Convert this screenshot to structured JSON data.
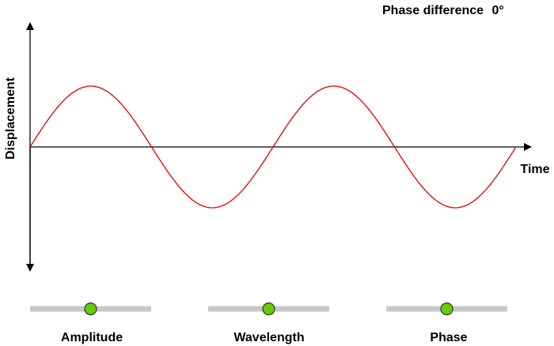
{
  "title": {
    "label": "Phase difference",
    "value": "0°"
  },
  "axes": {
    "x_label": "Time",
    "y_label": "Displacement"
  },
  "wave": {
    "color": "#e00000",
    "amplitude": 1,
    "cycles": 2,
    "phase_deg": 0
  },
  "sliders": [
    {
      "name": "amplitude",
      "label": "Amplitude",
      "value": 0.5
    },
    {
      "name": "wavelength",
      "label": "Wavelength",
      "value": 0.5
    },
    {
      "name": "phase",
      "label": "Phase",
      "value": 0.5
    }
  ],
  "colors": {
    "axis": "#000000",
    "track": "#c8c8c8",
    "knob": "#66cc00"
  }
}
